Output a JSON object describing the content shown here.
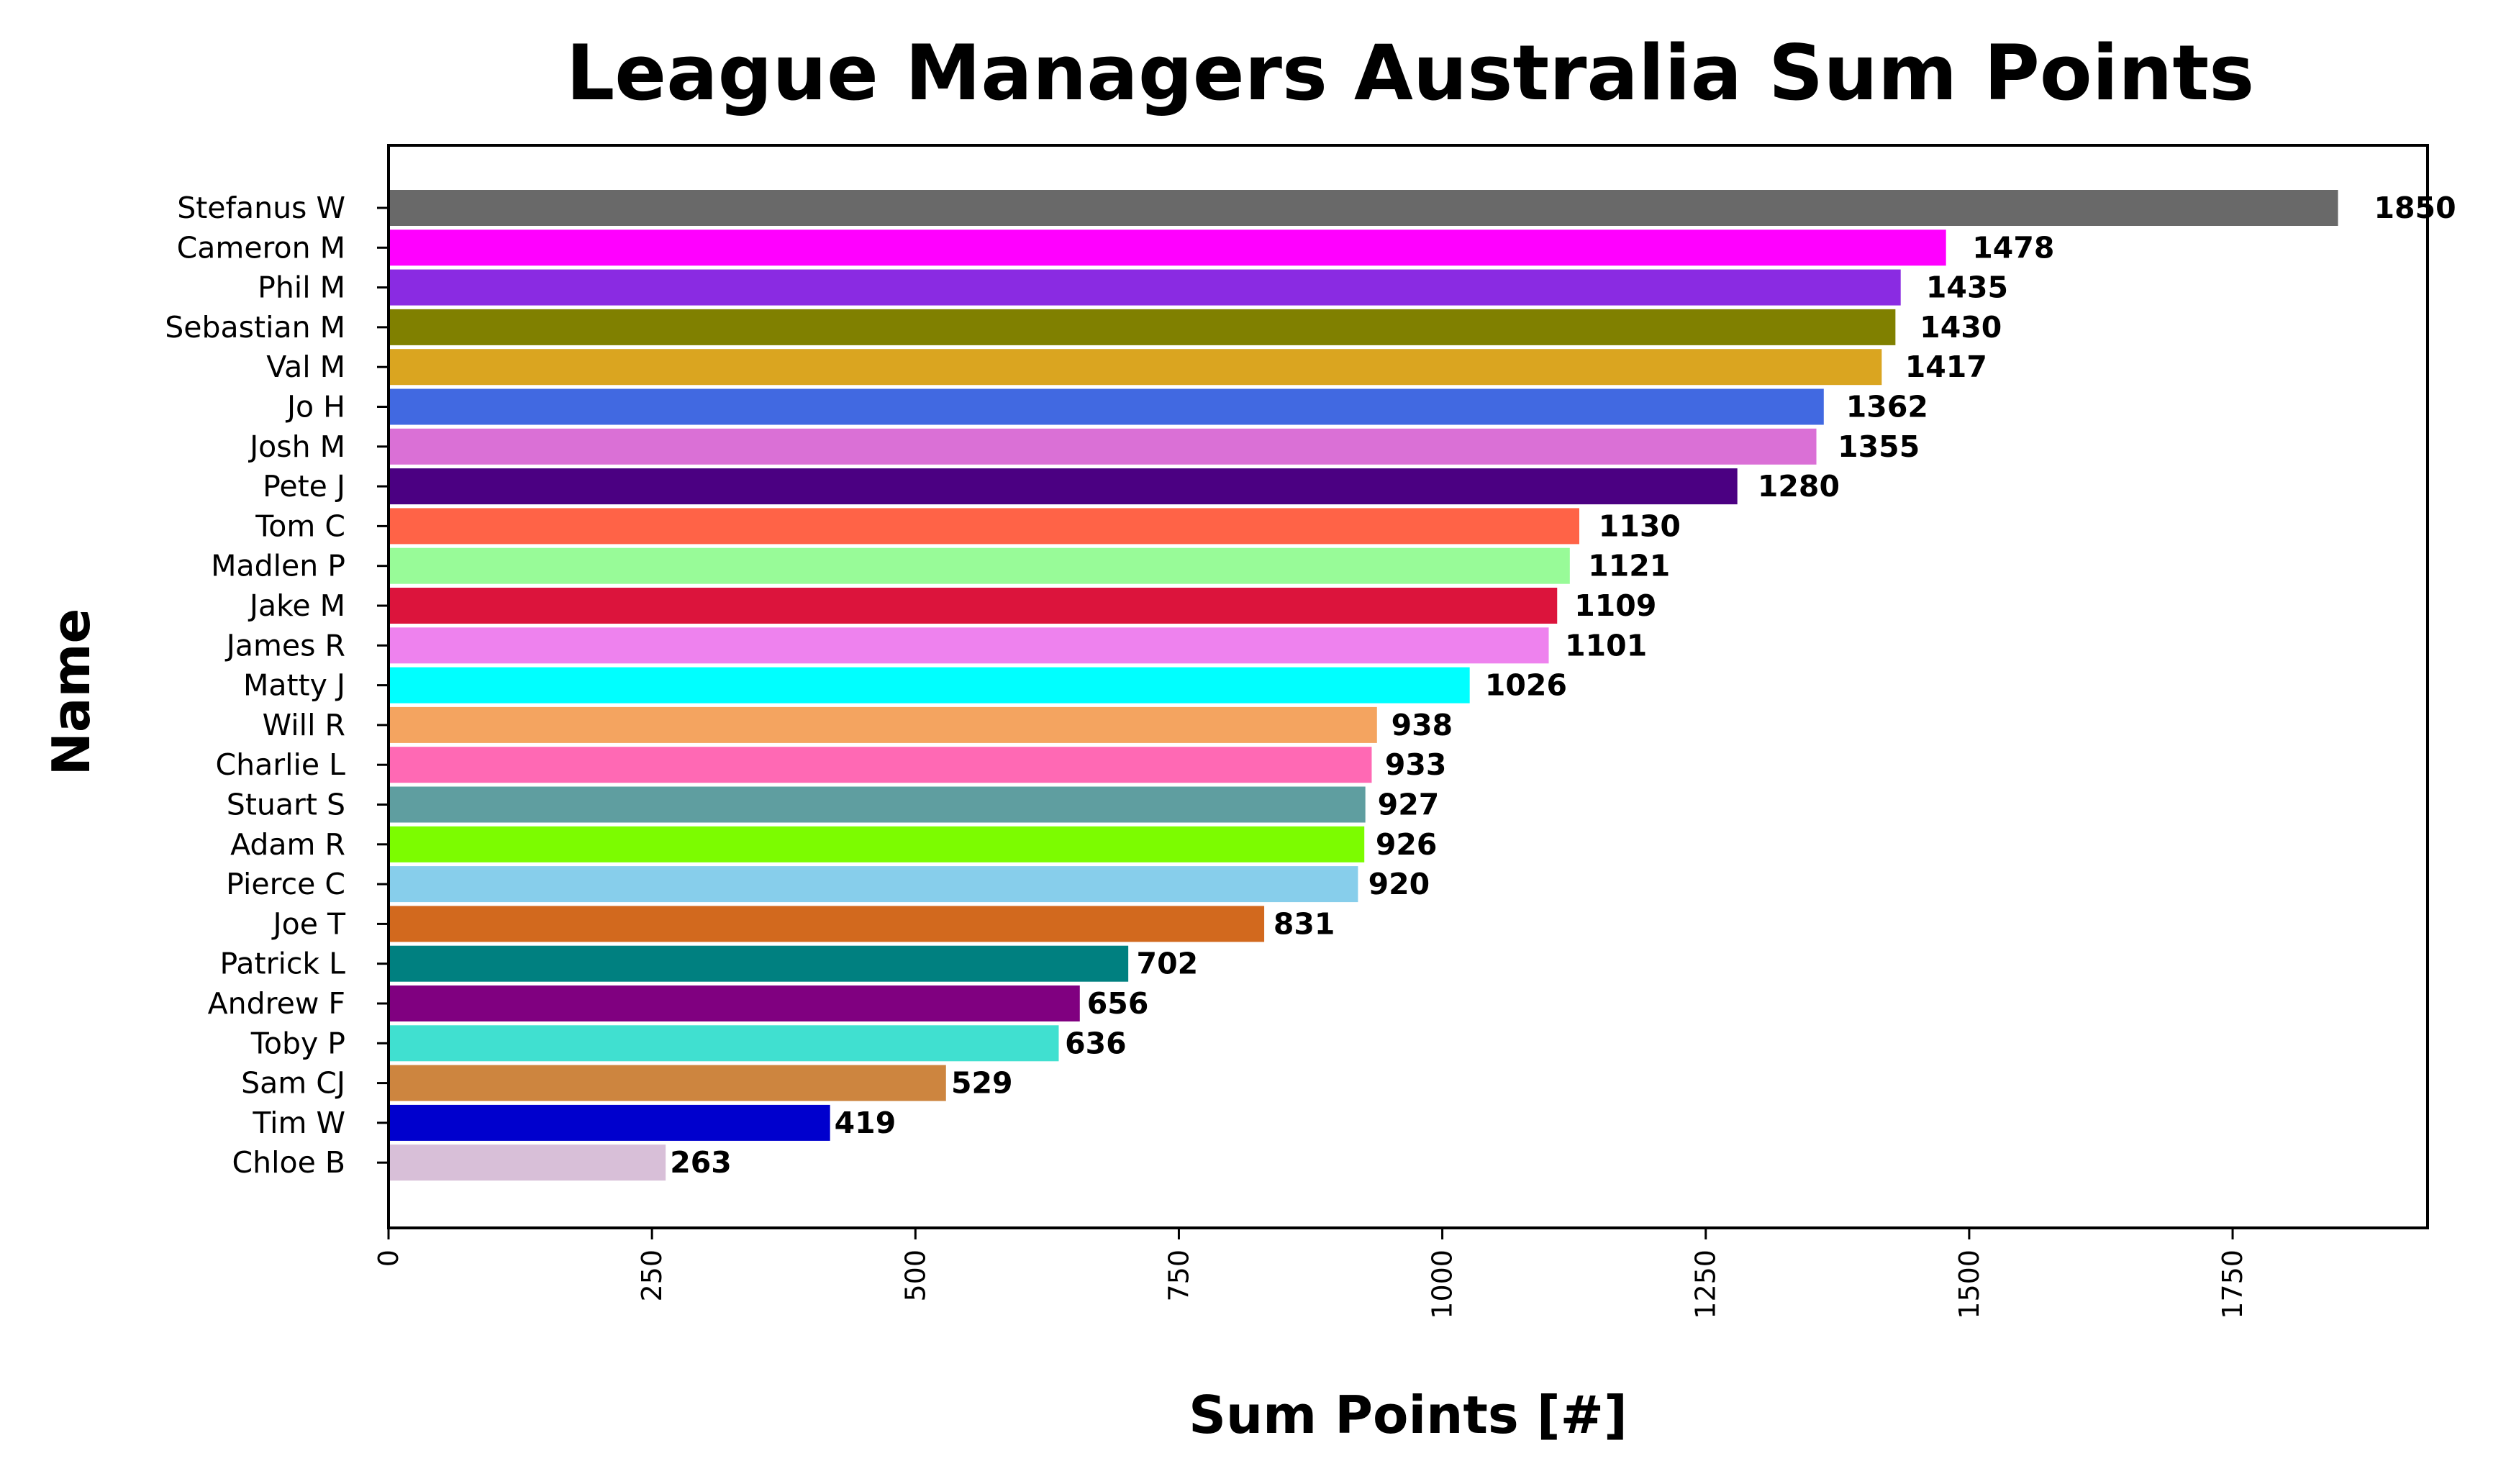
{
  "chart_data": {
    "type": "bar",
    "orientation": "horizontal",
    "title": "League Managers Australia Sum Points",
    "xlabel": "Sum Points [#]",
    "ylabel": "Name",
    "xlim": [
      0,
      1935
    ],
    "xticks": [
      0,
      250,
      500,
      750,
      1000,
      1250,
      1500,
      1750
    ],
    "grid": false,
    "legend": "none",
    "categories": [
      "Stefanus W",
      "Cameron M",
      "Phil M",
      "Sebastian M",
      "Val M",
      "Jo H",
      "Josh M",
      "Pete J",
      "Tom C",
      "Madlen P",
      "Jake M",
      "James R",
      "Matty J",
      "Will R",
      "Charlie L",
      "Stuart S",
      "Adam R",
      "Pierce C",
      "Joe T",
      "Patrick L",
      "Andrew F",
      "Toby P",
      "Sam CJ",
      "Tim W",
      "Chloe B"
    ],
    "values": [
      1850,
      1478,
      1435,
      1430,
      1417,
      1362,
      1355,
      1280,
      1130,
      1121,
      1109,
      1101,
      1026,
      938,
      933,
      927,
      926,
      920,
      831,
      702,
      656,
      636,
      529,
      419,
      263
    ],
    "colors": [
      "#696969",
      "#ff00ff",
      "#8a2be2",
      "#808000",
      "#daa520",
      "#4169e1",
      "#da70d6",
      "#4b0082",
      "#ff6347",
      "#98fb98",
      "#dc143c",
      "#ee82ee",
      "#00ffff",
      "#f4a460",
      "#ff69b4",
      "#5f9ea0",
      "#7cfc00",
      "#87ceeb",
      "#d2691e",
      "#008080",
      "#800080",
      "#40e0d0",
      "#cd853f",
      "#0000cd",
      "#d8bfd8"
    ]
  }
}
